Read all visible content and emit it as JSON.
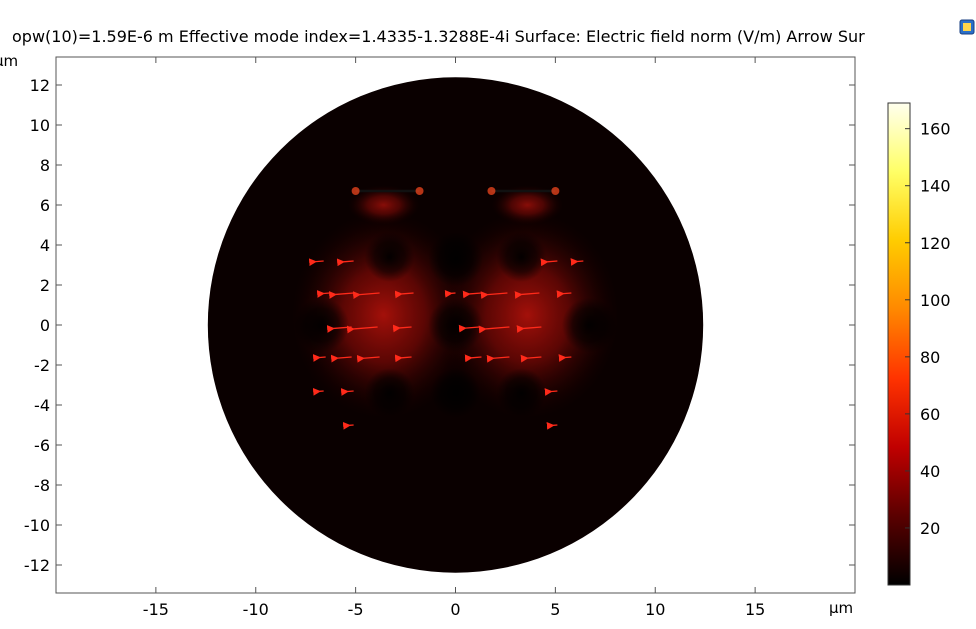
{
  "header": {
    "title": "opw(10)=1.59E-6 m Effective mode index=1.4335-1.3288E-4i  Surface: Electric field norm (V/m)  Arrow Sur"
  },
  "colors": {
    "frame": "#555555",
    "field_dark": "#0a0000",
    "field_glow": "#c01008",
    "arrow": "#ff2a1a"
  },
  "chart_data": {
    "type": "heatmap",
    "description_units": {
      "x_unit": "µm",
      "y_unit": "µm"
    },
    "xlabel": "µm",
    "ylabel": "µm",
    "xlim": [
      -20,
      20
    ],
    "ylim": [
      -13.4,
      13.4
    ],
    "x_ticks": [
      -15,
      -10,
      -5,
      0,
      5,
      10,
      15
    ],
    "y_ticks": [
      12,
      10,
      8,
      6,
      4,
      2,
      0,
      -2,
      -4,
      -6,
      -8,
      -10,
      -12
    ],
    "domain_circle": {
      "cx": 0,
      "cy": 0,
      "r": 12.4
    },
    "field_lobes": [
      {
        "x": -3.6,
        "y": 0.5,
        "rx": 4.6,
        "ry": 5.2,
        "strength": 0.85
      },
      {
        "x": 3.6,
        "y": 0.5,
        "rx": 4.6,
        "ry": 5.2,
        "strength": 0.85
      },
      {
        "x": -3.6,
        "y": 6.0,
        "rx": 1.8,
        "ry": 1.0,
        "strength": 0.7
      },
      {
        "x": 3.6,
        "y": 6.0,
        "rx": 1.8,
        "ry": 1.0,
        "strength": 0.7
      }
    ],
    "holes": [
      {
        "x": 0,
        "y": 3.3,
        "r": 1.1
      },
      {
        "x": -3.3,
        "y": 3.4,
        "r": 1.0
      },
      {
        "x": 3.3,
        "y": 3.4,
        "r": 1.0
      },
      {
        "x": -6.7,
        "y": 0,
        "r": 1.1
      },
      {
        "x": 0,
        "y": 0,
        "r": 1.1
      },
      {
        "x": 6.7,
        "y": 0,
        "r": 1.1
      },
      {
        "x": -3.3,
        "y": -3.4,
        "r": 1.0
      },
      {
        "x": 0,
        "y": -3.4,
        "r": 1.0
      },
      {
        "x": 3.3,
        "y": -3.4,
        "r": 1.0
      }
    ],
    "top_slots": [
      {
        "x1": -5.0,
        "x2": -1.8,
        "y": 6.7
      },
      {
        "x1": 1.8,
        "x2": 5.0,
        "y": 6.7
      }
    ],
    "arrows": [
      {
        "x": -6.6,
        "y": 3.2,
        "len": 0.4
      },
      {
        "x": -5.1,
        "y": 3.2,
        "len": 0.5
      },
      {
        "x": 5.1,
        "y": 3.2,
        "len": 0.5
      },
      {
        "x": 6.4,
        "y": 3.2,
        "len": 0.3
      },
      {
        "x": -6.3,
        "y": 1.6,
        "len": 0.3
      },
      {
        "x": -5.1,
        "y": 1.6,
        "len": 0.9
      },
      {
        "x": -3.8,
        "y": 1.6,
        "len": 1.0
      },
      {
        "x": -2.1,
        "y": 1.6,
        "len": 0.6
      },
      {
        "x": 0.0,
        "y": 1.6,
        "len": 0.2
      },
      {
        "x": 1.3,
        "y": 1.6,
        "len": 0.6
      },
      {
        "x": 2.6,
        "y": 1.6,
        "len": 1.0
      },
      {
        "x": 4.2,
        "y": 1.6,
        "len": 0.9
      },
      {
        "x": 5.8,
        "y": 1.6,
        "len": 0.4
      },
      {
        "x": -5.2,
        "y": -0.1,
        "len": 0.9
      },
      {
        "x": -3.9,
        "y": -0.1,
        "len": 1.2
      },
      {
        "x": -2.2,
        "y": -0.1,
        "len": 0.6
      },
      {
        "x": 1.2,
        "y": -0.1,
        "len": 0.7
      },
      {
        "x": 2.7,
        "y": -0.1,
        "len": 1.2
      },
      {
        "x": 4.3,
        "y": -0.1,
        "len": 0.9
      },
      {
        "x": -6.5,
        "y": -1.6,
        "len": 0.3
      },
      {
        "x": -5.2,
        "y": -1.6,
        "len": 0.7
      },
      {
        "x": -3.8,
        "y": -1.6,
        "len": 0.8
      },
      {
        "x": -2.2,
        "y": -1.6,
        "len": 0.5
      },
      {
        "x": 1.3,
        "y": -1.6,
        "len": 0.5
      },
      {
        "x": 2.7,
        "y": -1.6,
        "len": 0.8
      },
      {
        "x": 4.3,
        "y": -1.6,
        "len": 0.7
      },
      {
        "x": 5.8,
        "y": -1.6,
        "len": 0.3
      },
      {
        "x": -6.6,
        "y": -3.3,
        "len": 0.2
      },
      {
        "x": -5.1,
        "y": -3.3,
        "len": 0.3
      },
      {
        "x": 5.1,
        "y": -3.3,
        "len": 0.3
      },
      {
        "x": -5.1,
        "y": -5.0,
        "len": 0.2
      },
      {
        "x": 5.1,
        "y": -5.0,
        "len": 0.2
      }
    ],
    "colorbar": {
      "label_values": [
        160,
        140,
        120,
        100,
        80,
        60,
        40,
        20
      ],
      "min": 0,
      "max": 169,
      "colormap_stops": [
        "#000000",
        "#5a0000",
        "#c00000",
        "#ff3300",
        "#ff8800",
        "#ffcc00",
        "#ffff66",
        "#ffffee"
      ]
    }
  }
}
